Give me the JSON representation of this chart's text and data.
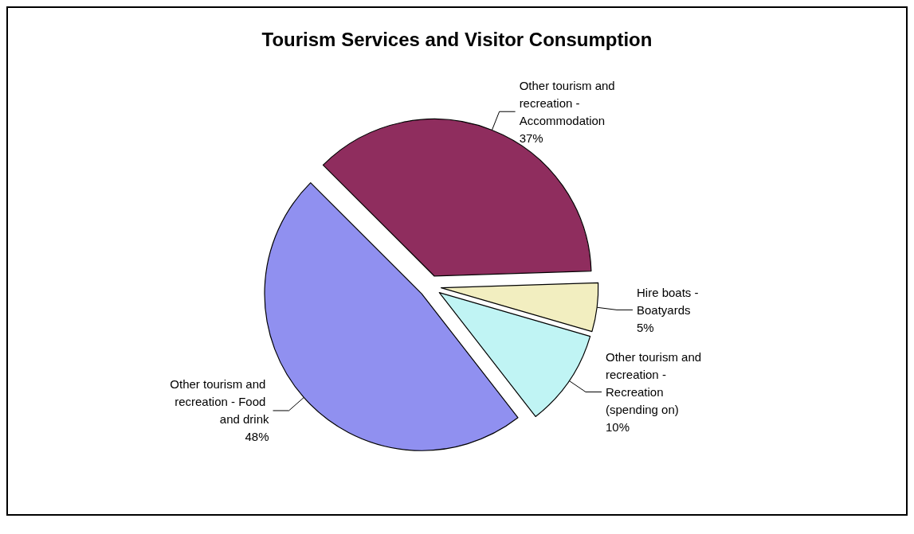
{
  "chart_data": {
    "type": "pie",
    "title": "Tourism Services and Visitor Consumption",
    "categories": [
      "Other tourism and recreation - Accommodation",
      "Hire boats - Boatyards",
      "Other tourism and recreation - Recreation (spending on)",
      "Other tourism and recreation - Food and drink"
    ],
    "values": [
      37,
      5,
      10,
      48
    ],
    "colors": [
      "#8f2d5e",
      "#f2eec0",
      "#c0f4f4",
      "#9090f0"
    ],
    "value_labels": [
      "37%",
      "5%",
      "10%",
      "48%"
    ],
    "legend": false
  }
}
